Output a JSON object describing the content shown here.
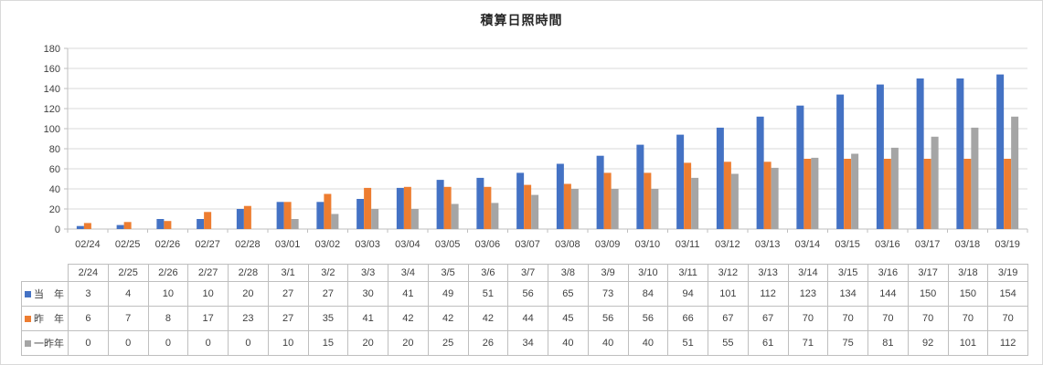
{
  "chart": {
    "title": "積算日照時間"
  },
  "chart_data": {
    "type": "bar",
    "title": "積算日照時間",
    "categories_axis": [
      "02/24",
      "02/25",
      "02/26",
      "02/27",
      "02/28",
      "03/01",
      "03/02",
      "03/03",
      "03/04",
      "03/05",
      "03/06",
      "03/07",
      "03/08",
      "03/09",
      "03/10",
      "03/11",
      "03/12",
      "03/13",
      "03/14",
      "03/15",
      "03/16",
      "03/17",
      "03/18",
      "03/19"
    ],
    "categories_table": [
      "2/24",
      "2/25",
      "2/26",
      "2/27",
      "2/28",
      "3/1",
      "3/2",
      "3/3",
      "3/4",
      "3/5",
      "3/6",
      "3/7",
      "3/8",
      "3/9",
      "3/10",
      "3/11",
      "3/12",
      "3/13",
      "3/14",
      "3/15",
      "3/16",
      "3/17",
      "3/18",
      "3/19"
    ],
    "series": [
      {
        "name": "当　年",
        "color": "#4472C4",
        "values": [
          3,
          4,
          10,
          10,
          20,
          27,
          27,
          30,
          41,
          49,
          51,
          56,
          65,
          73,
          84,
          94,
          101,
          112,
          123,
          134,
          144,
          150,
          150,
          154
        ]
      },
      {
        "name": "昨　年",
        "color": "#ED7D31",
        "values": [
          6,
          7,
          8,
          17,
          23,
          27,
          35,
          41,
          42,
          42,
          42,
          44,
          45,
          56,
          56,
          66,
          67,
          67,
          70,
          70,
          70,
          70,
          70,
          70
        ]
      },
      {
        "name": "一昨年",
        "color": "#A5A5A5",
        "values": [
          0,
          0,
          0,
          0,
          0,
          10,
          15,
          20,
          20,
          25,
          26,
          34,
          40,
          40,
          40,
          51,
          55,
          61,
          71,
          75,
          81,
          92,
          101,
          112
        ]
      }
    ],
    "ylim": [
      0,
      180
    ],
    "ytick_step": 20,
    "grid": true,
    "legend_position": "data-table-left"
  },
  "colors": {
    "gridline": "#d9d9d9",
    "axis_line": "#bfbfbf",
    "axis_text": "#404040",
    "table_border": "#bfbfbf",
    "background": "#ffffff"
  }
}
